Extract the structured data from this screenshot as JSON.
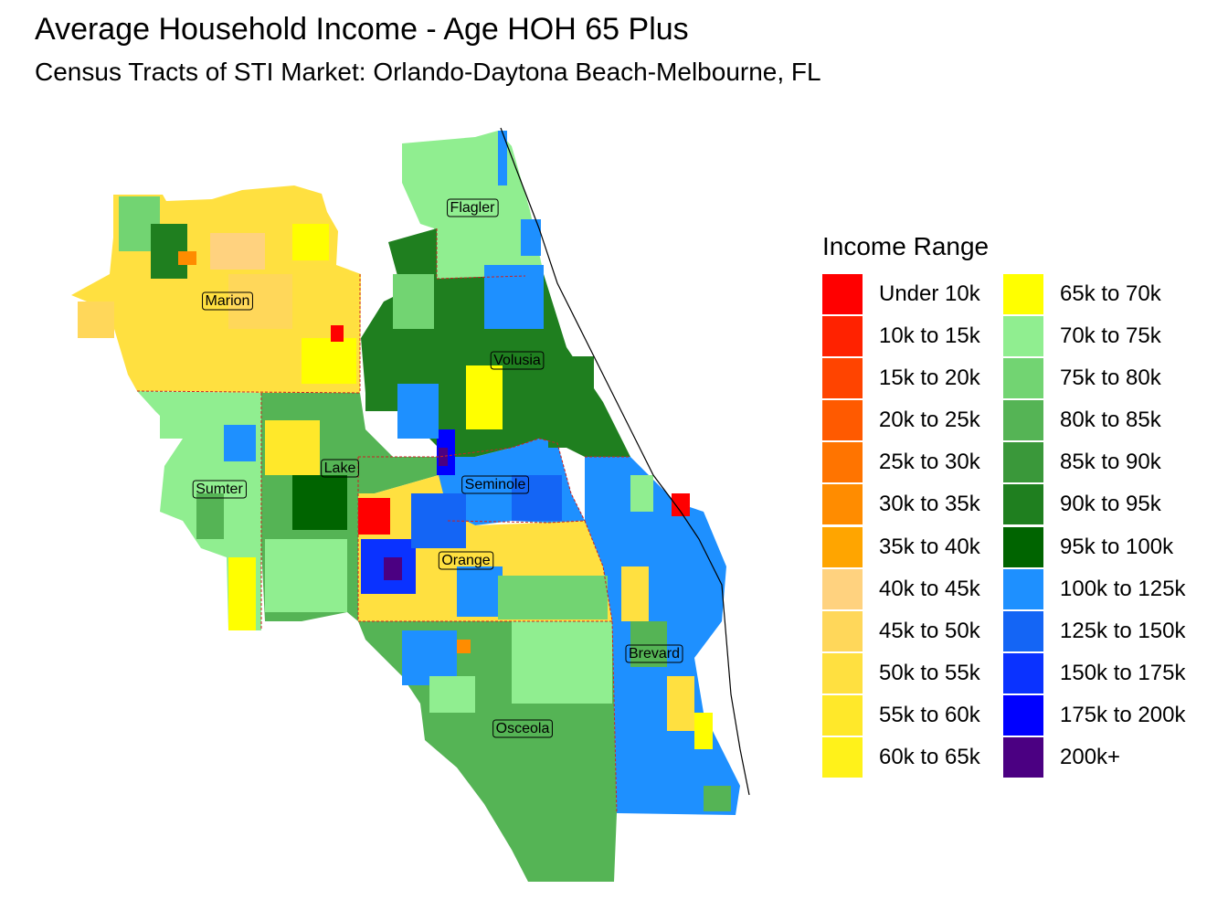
{
  "title": "Average Household Income - Age HOH 65 Plus",
  "subtitle": "Census Tracts of STI Market: Orlando-Daytona Beach-Melbourne, FL",
  "legend": {
    "title": "Income Range",
    "items": [
      {
        "label": "Under 10k",
        "color": "#FF0000"
      },
      {
        "label": "10k to 15k",
        "color": "#FF2200"
      },
      {
        "label": "15k to 20k",
        "color": "#FF4400"
      },
      {
        "label": "20k to 25k",
        "color": "#FF5A00"
      },
      {
        "label": "25k to 30k",
        "color": "#FF7400"
      },
      {
        "label": "30k to 35k",
        "color": "#FF8C00"
      },
      {
        "label": "35k to 40k",
        "color": "#FFA500"
      },
      {
        "label": "40k to 45k",
        "color": "#FFD27F"
      },
      {
        "label": "45k to 50k",
        "color": "#FFD75A"
      },
      {
        "label": "50k to 55k",
        "color": "#FFE040"
      },
      {
        "label": "55k to 60k",
        "color": "#FFE82A"
      },
      {
        "label": "60k to 65k",
        "color": "#FFF21A"
      },
      {
        "label": "65k to 70k",
        "color": "#FFFF00"
      },
      {
        "label": "70k to 75k",
        "color": "#90EE90"
      },
      {
        "label": "75k to 80k",
        "color": "#72D472"
      },
      {
        "label": "80k to 85k",
        "color": "#55B455"
      },
      {
        "label": "85k to 90k",
        "color": "#3A983A"
      },
      {
        "label": "90k to 95k",
        "color": "#1F7F1F"
      },
      {
        "label": "95k to 100k",
        "color": "#006400"
      },
      {
        "label": "100k to 125k",
        "color": "#1E90FF"
      },
      {
        "label": "125k to 150k",
        "color": "#1465F5"
      },
      {
        "label": "150k to 175k",
        "color": "#0A32FF"
      },
      {
        "label": "175k to 200k",
        "color": "#0000FF"
      },
      {
        "label": "200k+",
        "color": "#4B0082"
      }
    ]
  },
  "counties": [
    {
      "name": "Flagler"
    },
    {
      "name": "Marion"
    },
    {
      "name": "Volusia"
    },
    {
      "name": "Lake"
    },
    {
      "name": "Seminole"
    },
    {
      "name": "Sumter"
    },
    {
      "name": "Orange"
    },
    {
      "name": "Brevard"
    },
    {
      "name": "Osceola"
    }
  ]
}
